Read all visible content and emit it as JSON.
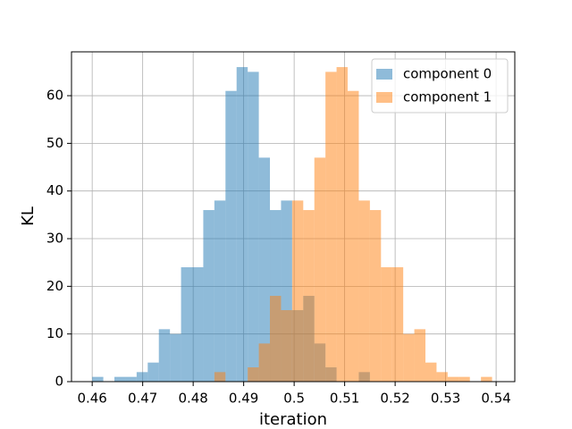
{
  "chart_data": {
    "type": "histogram",
    "xlabel": "iteration",
    "ylabel": "KL",
    "bins": [
      0.46,
      0.4622,
      0.4644,
      0.4666,
      0.4688,
      0.471,
      0.4732,
      0.4754,
      0.4776,
      0.4798,
      0.482,
      0.4842,
      0.4864,
      0.4886,
      0.4908,
      0.493,
      0.4952,
      0.4974,
      0.4996,
      0.5018,
      0.504,
      0.5062,
      0.5084,
      0.5106,
      0.5128,
      0.515,
      0.5172,
      0.5194,
      0.5216,
      0.5238,
      0.526,
      0.5282,
      0.5304,
      0.5326,
      0.5348,
      0.537,
      0.5392
    ],
    "series": [
      {
        "name": "component 0",
        "color": "#1f77b4",
        "values": [
          1,
          0,
          1,
          1,
          2,
          4,
          11,
          10,
          24,
          24,
          36,
          38,
          61,
          66,
          65,
          47,
          36,
          38,
          15,
          18,
          8,
          3,
          0,
          0,
          2,
          0,
          0,
          0,
          0,
          0,
          0,
          0,
          0,
          0,
          0,
          0
        ]
      },
      {
        "name": "component 1",
        "color": "#ff7f0e",
        "values": [
          0,
          0,
          0,
          0,
          0,
          0,
          0,
          0,
          0,
          0,
          0,
          2,
          0,
          0,
          3,
          8,
          18,
          15,
          38,
          36,
          47,
          65,
          66,
          61,
          38,
          36,
          24,
          24,
          10,
          11,
          4,
          2,
          1,
          1,
          0,
          1
        ]
      }
    ],
    "opacity": 0.5,
    "xlim": [
      0.4559,
      0.5437
    ],
    "ylim": [
      0,
      69.2
    ],
    "xticks": [
      0.46,
      0.47,
      0.48,
      0.49,
      0.5,
      0.51,
      0.52,
      0.53,
      0.54
    ],
    "yticks": [
      0,
      10,
      20,
      30,
      40,
      50,
      60
    ],
    "grid": true,
    "legend": "upper right"
  }
}
